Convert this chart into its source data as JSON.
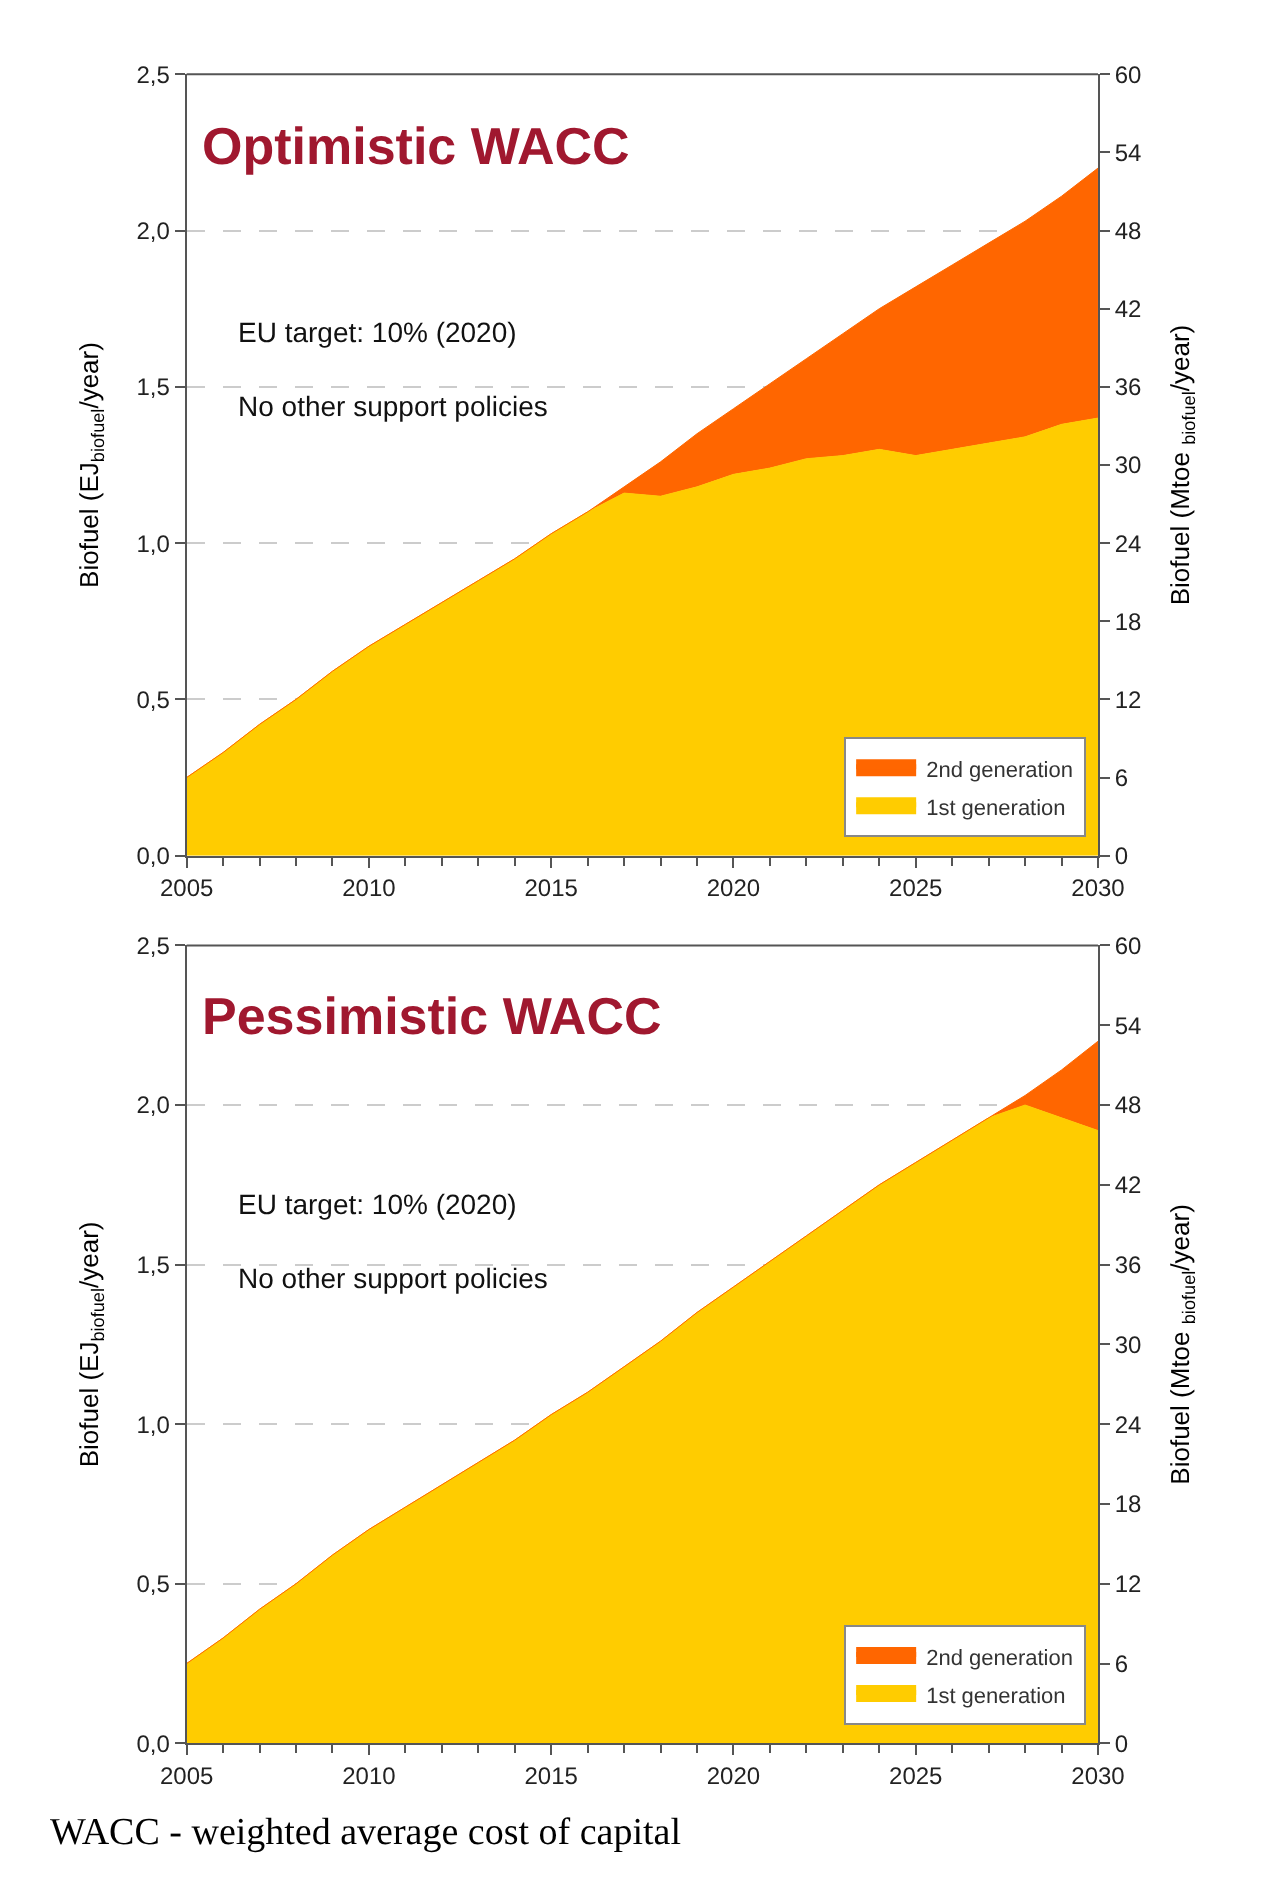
{
  "chart_data": [
    {
      "type": "area",
      "title": "Optimistic WACC",
      "stacked": true,
      "legend": "bottom right",
      "grid": "y",
      "ylabel": "Biofuel (EJ$_{biofuel}$/year)",
      "y2label": "Biofuel (Mtoe $_{biofuel}$/year)",
      "annotations": [
        "EU target: 10% (2020)",
        "No other support policies"
      ],
      "x": [
        2005,
        2006,
        2007,
        2008,
        2009,
        2010,
        2011,
        2012,
        2013,
        2014,
        2015,
        2016,
        2017,
        2018,
        2019,
        2020,
        2021,
        2022,
        2023,
        2024,
        2025,
        2026,
        2027,
        2028,
        2029,
        2030
      ],
      "xlim": [
        2005,
        2030
      ],
      "xticks": [
        2005,
        2010,
        2015,
        2020,
        2025,
        2030
      ],
      "ylim": [
        0,
        2.5
      ],
      "yticks": [
        {
          "value": 0,
          "label": "0,0"
        },
        {
          "value": 0.5,
          "label": "0,5"
        },
        {
          "value": 1.0,
          "label": "1,0"
        },
        {
          "value": 1.5,
          "label": "1,5"
        },
        {
          "value": 2.0,
          "label": "2,0"
        },
        {
          "value": 2.5,
          "label": "2,5"
        }
      ],
      "y2lim": [
        0,
        60
      ],
      "y2ticks": [
        0,
        6,
        12,
        18,
        24,
        30,
        36,
        42,
        48,
        54,
        60
      ],
      "series": [
        {
          "name": "1st generation",
          "color": "#ffcc00",
          "values": [
            0.25,
            0.33,
            0.42,
            0.5,
            0.59,
            0.67,
            0.74,
            0.81,
            0.88,
            0.95,
            1.03,
            1.1,
            1.16,
            1.15,
            1.18,
            1.22,
            1.24,
            1.27,
            1.28,
            1.3,
            1.28,
            1.3,
            1.32,
            1.34,
            1.38,
            1.4
          ]
        },
        {
          "name": "2nd generation",
          "color": "#ff6600",
          "values": [
            0,
            0,
            0,
            0,
            0,
            0,
            0,
            0,
            0,
            0,
            0,
            0,
            0.02,
            0.11,
            0.17,
            0.21,
            0.27,
            0.32,
            0.39,
            0.45,
            0.54,
            0.59,
            0.64,
            0.69,
            0.73,
            0.8
          ]
        }
      ]
    },
    {
      "type": "area",
      "title": "Pessimistic WACC",
      "stacked": true,
      "legend": "bottom right",
      "grid": "y",
      "ylabel": "Biofuel (EJ$_{biofuel}$/year)",
      "y2label": "Biofuel (Mtoe $_{biofuel}$/year)",
      "annotations": [
        "EU target: 10% (2020)",
        "No other support policies",
        "WACC - weighted average cost of capital"
      ],
      "x": [
        2005,
        2006,
        2007,
        2008,
        2009,
        2010,
        2011,
        2012,
        2013,
        2014,
        2015,
        2016,
        2017,
        2018,
        2019,
        2020,
        2021,
        2022,
        2023,
        2024,
        2025,
        2026,
        2027,
        2028,
        2029,
        2030
      ],
      "xlim": [
        2005,
        2030
      ],
      "xticks": [
        2005,
        2010,
        2015,
        2020,
        2025,
        2030
      ],
      "ylim": [
        0,
        2.5
      ],
      "yticks": [
        {
          "value": 0,
          "label": "0,0"
        },
        {
          "value": 0.5,
          "label": "0,5"
        },
        {
          "value": 1.0,
          "label": "1,0"
        },
        {
          "value": 1.5,
          "label": "1,5"
        },
        {
          "value": 2.0,
          "label": "2,0"
        },
        {
          "value": 2.5,
          "label": "2,5"
        }
      ],
      "y2lim": [
        0,
        60
      ],
      "y2ticks": [
        0,
        6,
        12,
        18,
        24,
        30,
        36,
        42,
        48,
        54,
        60
      ],
      "series": [
        {
          "name": "1st generation",
          "color": "#ffcc00",
          "values": [
            0.25,
            0.33,
            0.42,
            0.5,
            0.59,
            0.67,
            0.74,
            0.81,
            0.88,
            0.95,
            1.03,
            1.1,
            1.18,
            1.26,
            1.35,
            1.43,
            1.51,
            1.59,
            1.67,
            1.75,
            1.82,
            1.89,
            1.96,
            2.0,
            1.96,
            1.92
          ]
        },
        {
          "name": "2nd generation",
          "color": "#ff6600",
          "values": [
            0,
            0,
            0,
            0,
            0,
            0,
            0,
            0,
            0,
            0,
            0,
            0,
            0,
            0,
            0,
            0,
            0,
            0,
            0,
            0,
            0,
            0,
            0,
            0.03,
            0.15,
            0.28
          ]
        }
      ]
    }
  ]
}
